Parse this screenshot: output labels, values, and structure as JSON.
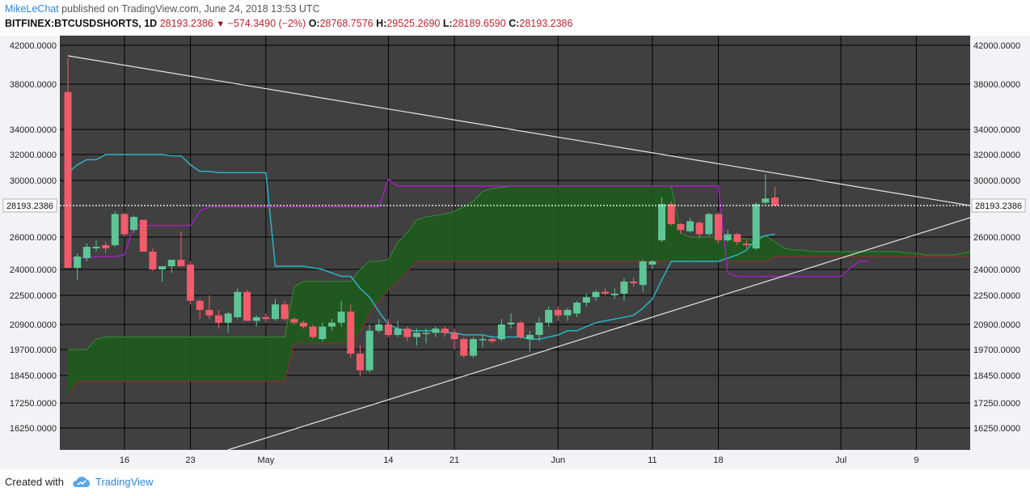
{
  "header": {
    "author": "MikeLeChat",
    "published_text": " published on TradingView.com, June 24, 2018 13:53 UTC",
    "symbol": "BITFINEX:BTCUSDSHORTS, 1D",
    "last": "28193.2386",
    "change": "−574.3490 (−2%)",
    "o_label": "O:",
    "o_value": "28768.7576",
    "h_label": "H:",
    "h_value": "29525.2690",
    "l_label": "L:",
    "l_value": "28189.6590",
    "c_label": "C:",
    "c_value": "28193.2386"
  },
  "footer": {
    "created_with": "Created with",
    "brand": "TradingView"
  },
  "colors": {
    "chart_bg": "#404040",
    "grid": "#000000",
    "up": "#5ec597",
    "down": "#f25b6b",
    "tenkan": "#2bb2c4",
    "kijun": "#a020c0",
    "cloud_bull": "#1f5a1f",
    "cloud_bear": "#8a1a1a",
    "trendline": "#e6e6e6",
    "current_price_line": "#ffffff"
  },
  "chart_data": {
    "type": "candlestick",
    "x_axis": [
      "16",
      "23",
      "May",
      "14",
      "21",
      "Jun",
      "11",
      "18",
      "Jul",
      "9"
    ],
    "y_ticks": [
      "42000.0000",
      "38000.0000",
      "34000.0000",
      "32000.0000",
      "30000.0000",
      "28193.2386",
      "26000.0000",
      "24000.0000",
      "22500.0000",
      "20900.0000",
      "19700.0000",
      "18450.0000",
      "17250.0000",
      "16250.0000"
    ],
    "y_tick_values": [
      42000,
      38000,
      34000,
      32000,
      30000,
      28193.2386,
      26000,
      24000,
      22500,
      20900,
      19700,
      18450,
      17250,
      16250
    ],
    "y_range": [
      15000,
      42500
    ],
    "current_price": "28193.2386",
    "candles": [
      {
        "date": "2018-04-10",
        "o": 37300,
        "h": 40700,
        "l": 24200,
        "c": 24100
      },
      {
        "date": "2018-04-11",
        "o": 24100,
        "h": 25000,
        "l": 23400,
        "c": 24800
      },
      {
        "date": "2018-04-12",
        "o": 24700,
        "h": 25600,
        "l": 24500,
        "c": 25400
      },
      {
        "date": "2018-04-13",
        "o": 25300,
        "h": 25800,
        "l": 25100,
        "c": 25400
      },
      {
        "date": "2018-04-14",
        "o": 25500,
        "h": 25700,
        "l": 25000,
        "c": 25300
      },
      {
        "date": "2018-04-15",
        "o": 25500,
        "h": 27800,
        "l": 25400,
        "c": 27600
      },
      {
        "date": "2018-04-16",
        "o": 27600,
        "h": 27700,
        "l": 26000,
        "c": 26200
      },
      {
        "date": "2018-04-17",
        "o": 26500,
        "h": 27500,
        "l": 26300,
        "c": 27400
      },
      {
        "date": "2018-04-18",
        "o": 27200,
        "h": 27200,
        "l": 25100,
        "c": 25100
      },
      {
        "date": "2018-04-19",
        "o": 25100,
        "h": 25300,
        "l": 23900,
        "c": 24000
      },
      {
        "date": "2018-04-20",
        "o": 24000,
        "h": 24200,
        "l": 23300,
        "c": 24200
      },
      {
        "date": "2018-04-21",
        "o": 24200,
        "h": 24600,
        "l": 23800,
        "c": 24600
      },
      {
        "date": "2018-04-22",
        "o": 24600,
        "h": 26400,
        "l": 24200,
        "c": 24200
      },
      {
        "date": "2018-04-23",
        "o": 24300,
        "h": 24500,
        "l": 22000,
        "c": 22200
      },
      {
        "date": "2018-04-24",
        "o": 22200,
        "h": 22300,
        "l": 21200,
        "c": 21700
      },
      {
        "date": "2018-04-25",
        "o": 21700,
        "h": 22500,
        "l": 21200,
        "c": 21400
      },
      {
        "date": "2018-04-26",
        "o": 21400,
        "h": 21700,
        "l": 20700,
        "c": 21000
      },
      {
        "date": "2018-04-27",
        "o": 21000,
        "h": 21600,
        "l": 20500,
        "c": 21500
      },
      {
        "date": "2018-04-28",
        "o": 21300,
        "h": 22900,
        "l": 21200,
        "c": 22700
      },
      {
        "date": "2018-04-29",
        "o": 22700,
        "h": 22800,
        "l": 21100,
        "c": 21100
      },
      {
        "date": "2018-04-30",
        "o": 21100,
        "h": 21400,
        "l": 20800,
        "c": 21300
      },
      {
        "date": "2018-05-01",
        "o": 21300,
        "h": 21500,
        "l": 21000,
        "c": 21200
      },
      {
        "date": "2018-05-02",
        "o": 21200,
        "h": 22300,
        "l": 21100,
        "c": 22000
      },
      {
        "date": "2018-05-03",
        "o": 22000,
        "h": 22200,
        "l": 21100,
        "c": 21200
      },
      {
        "date": "2018-05-04",
        "o": 21200,
        "h": 21300,
        "l": 20900,
        "c": 21000
      },
      {
        "date": "2018-05-05",
        "o": 21000,
        "h": 21100,
        "l": 20700,
        "c": 20800
      },
      {
        "date": "2018-05-06",
        "o": 20800,
        "h": 20900,
        "l": 20200,
        "c": 20300
      },
      {
        "date": "2018-05-07",
        "o": 20200,
        "h": 21000,
        "l": 20100,
        "c": 20800
      },
      {
        "date": "2018-05-08",
        "o": 20800,
        "h": 21200,
        "l": 20600,
        "c": 21000
      },
      {
        "date": "2018-05-09",
        "o": 21000,
        "h": 22200,
        "l": 20800,
        "c": 21600
      },
      {
        "date": "2018-05-10",
        "o": 21600,
        "h": 22000,
        "l": 19300,
        "c": 19500
      },
      {
        "date": "2018-05-11",
        "o": 19500,
        "h": 19900,
        "l": 18400,
        "c": 18700
      },
      {
        "date": "2018-05-12",
        "o": 18700,
        "h": 20900,
        "l": 18600,
        "c": 20600
      },
      {
        "date": "2018-05-13",
        "o": 20600,
        "h": 21200,
        "l": 20500,
        "c": 20900
      },
      {
        "date": "2018-05-14",
        "o": 20900,
        "h": 21200,
        "l": 20300,
        "c": 20400
      },
      {
        "date": "2018-05-15",
        "o": 20400,
        "h": 21100,
        "l": 20300,
        "c": 20700
      },
      {
        "date": "2018-05-16",
        "o": 20700,
        "h": 20800,
        "l": 20100,
        "c": 20300
      },
      {
        "date": "2018-05-17",
        "o": 20300,
        "h": 20700,
        "l": 19900,
        "c": 20500
      },
      {
        "date": "2018-05-18",
        "o": 20500,
        "h": 20700,
        "l": 20000,
        "c": 20500
      },
      {
        "date": "2018-05-19",
        "o": 20500,
        "h": 20800,
        "l": 20300,
        "c": 20700
      },
      {
        "date": "2018-05-20",
        "o": 20700,
        "h": 20800,
        "l": 20300,
        "c": 20500
      },
      {
        "date": "2018-05-21",
        "o": 20500,
        "h": 20700,
        "l": 19700,
        "c": 20200
      },
      {
        "date": "2018-05-22",
        "o": 20200,
        "h": 20300,
        "l": 19300,
        "c": 19400
      },
      {
        "date": "2018-05-23",
        "o": 19400,
        "h": 20300,
        "l": 19300,
        "c": 20200
      },
      {
        "date": "2018-05-24",
        "o": 20200,
        "h": 20400,
        "l": 19800,
        "c": 20200
      },
      {
        "date": "2018-05-25",
        "o": 20200,
        "h": 20300,
        "l": 20000,
        "c": 20100
      },
      {
        "date": "2018-05-26",
        "o": 20200,
        "h": 21200,
        "l": 20100,
        "c": 20900
      },
      {
        "date": "2018-05-27",
        "o": 20900,
        "h": 21500,
        "l": 20700,
        "c": 21000
      },
      {
        "date": "2018-05-28",
        "o": 21000,
        "h": 21100,
        "l": 20200,
        "c": 20300
      },
      {
        "date": "2018-05-29",
        "o": 20200,
        "h": 20600,
        "l": 19600,
        "c": 20400
      },
      {
        "date": "2018-05-30",
        "o": 20400,
        "h": 21300,
        "l": 20100,
        "c": 21000
      },
      {
        "date": "2018-05-31",
        "o": 21000,
        "h": 21900,
        "l": 20800,
        "c": 21700
      },
      {
        "date": "2018-06-01",
        "o": 21700,
        "h": 21900,
        "l": 21100,
        "c": 21400
      },
      {
        "date": "2018-06-02",
        "o": 21400,
        "h": 21800,
        "l": 21100,
        "c": 21700
      },
      {
        "date": "2018-06-03",
        "o": 21500,
        "h": 22200,
        "l": 21300,
        "c": 22100
      },
      {
        "date": "2018-06-04",
        "o": 22100,
        "h": 22600,
        "l": 21900,
        "c": 22400
      },
      {
        "date": "2018-06-05",
        "o": 22400,
        "h": 22800,
        "l": 22200,
        "c": 22700
      },
      {
        "date": "2018-06-06",
        "o": 22700,
        "h": 22900,
        "l": 22500,
        "c": 22600
      },
      {
        "date": "2018-06-07",
        "o": 22500,
        "h": 22900,
        "l": 22300,
        "c": 22600
      },
      {
        "date": "2018-06-08",
        "o": 22600,
        "h": 23500,
        "l": 22200,
        "c": 23300
      },
      {
        "date": "2018-06-09",
        "o": 23300,
        "h": 23500,
        "l": 23000,
        "c": 23200
      },
      {
        "date": "2018-06-10",
        "o": 23100,
        "h": 24600,
        "l": 22700,
        "c": 24500
      },
      {
        "date": "2018-06-11",
        "o": 24300,
        "h": 24600,
        "l": 24000,
        "c": 24500
      },
      {
        "date": "2018-06-12",
        "o": 25800,
        "h": 28800,
        "l": 25700,
        "c": 28300
      },
      {
        "date": "2018-06-13",
        "o": 28300,
        "h": 28500,
        "l": 26800,
        "c": 26900
      },
      {
        "date": "2018-06-14",
        "o": 26900,
        "h": 27000,
        "l": 26200,
        "c": 26500
      },
      {
        "date": "2018-06-15",
        "o": 26400,
        "h": 27300,
        "l": 26300,
        "c": 27100
      },
      {
        "date": "2018-06-16",
        "o": 27000,
        "h": 27100,
        "l": 25900,
        "c": 26200
      },
      {
        "date": "2018-06-17",
        "o": 26200,
        "h": 27700,
        "l": 26100,
        "c": 27600
      },
      {
        "date": "2018-06-18",
        "o": 27600,
        "h": 27700,
        "l": 25600,
        "c": 25800
      },
      {
        "date": "2018-06-19",
        "o": 25800,
        "h": 26500,
        "l": 25700,
        "c": 26200
      },
      {
        "date": "2018-06-20",
        "o": 26200,
        "h": 26300,
        "l": 25500,
        "c": 25700
      },
      {
        "date": "2018-06-21",
        "o": 25600,
        "h": 25800,
        "l": 25300,
        "c": 25500
      },
      {
        "date": "2018-06-22",
        "o": 25300,
        "h": 28400,
        "l": 25200,
        "c": 28300
      },
      {
        "date": "2018-06-23",
        "o": 28400,
        "h": 30500,
        "l": 28300,
        "c": 28700
      },
      {
        "date": "2018-06-24",
        "o": 28768.7576,
        "h": 29525.269,
        "l": 28189.659,
        "c": 28193.2386
      }
    ],
    "tenkan": [
      30600,
      31200,
      31600,
      31600,
      32000,
      32000,
      32000,
      32000,
      32000,
      32000,
      32000,
      31900,
      31900,
      31200,
      30700,
      30700,
      30600,
      30600,
      30600,
      30600,
      30600,
      30600,
      24200,
      24200,
      24200,
      24200,
      24100,
      24000,
      23800,
      23600,
      23600,
      22900,
      22400,
      21600,
      20900,
      20700,
      20600,
      20600,
      20600,
      20600,
      20500,
      20500,
      20400,
      20400,
      20400,
      20300,
      20300,
      20300,
      20300,
      20200,
      20200,
      20300,
      20400,
      20600,
      20600,
      20800,
      21000,
      21100,
      21200,
      21300,
      21400,
      21800,
      22300,
      23400,
      24500,
      24500,
      24500,
      24500,
      24500,
      24500,
      24700,
      24900,
      25200,
      25900,
      26100,
      26200
    ],
    "kijun": [
      24600,
      24700,
      24700,
      24800,
      24800,
      24800,
      24900,
      26800,
      26800,
      26800,
      26800,
      26800,
      26800,
      26800,
      27800,
      28100,
      28100,
      28100,
      28100,
      28100,
      28100,
      28100,
      28100,
      28100,
      28100,
      28100,
      28100,
      28100,
      28100,
      28100,
      28100,
      28100,
      28100,
      28100,
      30100,
      29600,
      29600,
      29600,
      29600,
      29600,
      29600,
      29600,
      29600,
      29600,
      29600,
      29600,
      29600,
      29600,
      29600,
      29600,
      29600,
      29600,
      29600,
      29600,
      29600,
      29600,
      29600,
      29600,
      29600,
      29600,
      29600,
      29600,
      29600,
      29600,
      29600,
      29600,
      29600,
      29600,
      29600,
      29600,
      23800,
      23600,
      23600,
      23600,
      23600,
      23600,
      23600,
      23600,
      23600,
      23600,
      23600,
      23600,
      23600,
      24100,
      24500,
      24500
    ],
    "cloud_span_a": [
      19700,
      19700,
      19700,
      20200,
      20300,
      20300,
      20300,
      20300,
      20300,
      20300,
      20300,
      20300,
      20300,
      20300,
      20300,
      20300,
      20300,
      20300,
      20300,
      20300,
      20300,
      20300,
      20300,
      20300,
      23000,
      23300,
      23300,
      23300,
      23300,
      23300,
      23300,
      24000,
      24500,
      24500,
      24600,
      25700,
      26300,
      27200,
      27400,
      27500,
      27600,
      27800,
      28100,
      28500,
      29200,
      29400,
      29500,
      29600,
      29600,
      29600,
      29600,
      29600,
      29600,
      29600,
      29600,
      29600,
      29600,
      29600,
      29600,
      29600,
      29600,
      29600,
      29600,
      29600,
      29600,
      26300,
      26000,
      26000,
      26000,
      26000,
      26000,
      25900,
      25900,
      25700,
      26100,
      25700,
      25300,
      25200,
      25200,
      25100,
      25100,
      25100,
      25100,
      25100,
      25100,
      25100,
      25100,
      25100,
      25100,
      25000,
      25000,
      24900,
      24900,
      24900,
      24900,
      25000,
      25100,
      25200,
      25400,
      25600,
      25700,
      25900,
      25300,
      23600,
      24100
    ],
    "cloud_span_b": [
      17500,
      18200,
      18200,
      18200,
      18200,
      18200,
      18200,
      18200,
      18200,
      18200,
      18200,
      18200,
      18200,
      18200,
      18200,
      18200,
      18200,
      18200,
      18200,
      18200,
      18200,
      18200,
      18200,
      18200,
      20000,
      20000,
      20000,
      20000,
      20000,
      20000,
      20000,
      20500,
      21500,
      22200,
      22800,
      23300,
      23900,
      24500,
      24500,
      24500,
      24500,
      24500,
      24500,
      24500,
      24500,
      24500,
      24500,
      24500,
      24500,
      24500,
      24500,
      24500,
      24500,
      24500,
      24500,
      24500,
      24500,
      24500,
      24500,
      24500,
      24500,
      24500,
      24500,
      24500,
      24500,
      24500,
      24500,
      24500,
      24500,
      24500,
      24500,
      24500,
      24500,
      24500,
      24500,
      24800,
      24800,
      24800,
      24800,
      24800,
      24800,
      24800,
      24800,
      24800,
      24800,
      24800,
      24800,
      24800,
      24800,
      24800,
      24800,
      24800,
      24800,
      24800,
      24800,
      24800,
      24800,
      24800,
      24800,
      24800,
      24800,
      24800,
      25300,
      25300,
      25300
    ]
  }
}
